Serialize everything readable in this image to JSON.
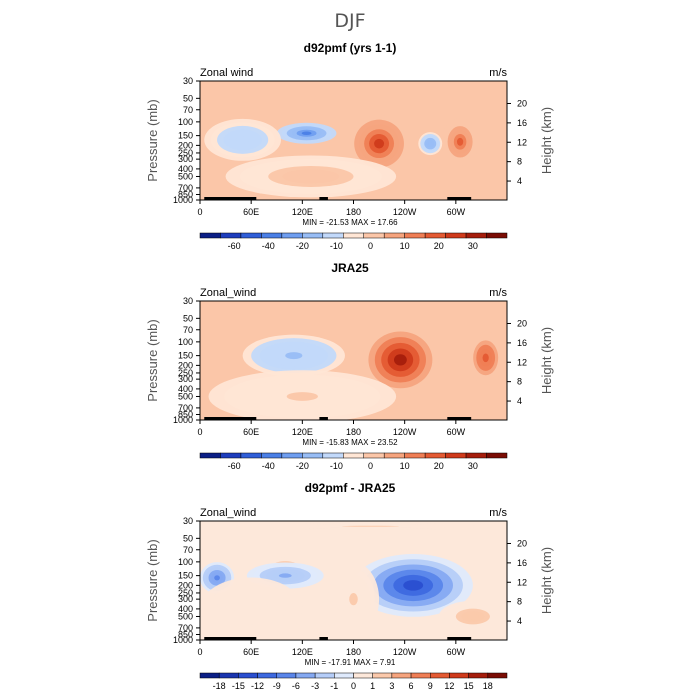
{
  "title": "DJF",
  "chart_data": [
    {
      "type": "contour",
      "panel_title": "d92pmf (yrs 1-1)",
      "variable_label": "Zonal wind",
      "units_label": "m/s",
      "xlabel": "",
      "ylabel_left": "Pressure (mb)",
      "ylabel_right": "Height (km)",
      "x_ticks": [
        "0",
        "60E",
        "120E",
        "180",
        "120W",
        "60W"
      ],
      "x_tick_values": [
        0,
        60,
        120,
        180,
        240,
        300
      ],
      "xlim": [
        0,
        360
      ],
      "pressure_ticks": [
        "30",
        "50",
        "70",
        "100",
        "150",
        "200",
        "250",
        "300",
        "400",
        "500",
        "700",
        "850",
        "1000"
      ],
      "pressure_values": [
        30,
        50,
        70,
        100,
        150,
        200,
        250,
        300,
        400,
        500,
        700,
        850,
        1000
      ],
      "height_ticks": [
        "4",
        "8",
        "12",
        "16",
        "20"
      ],
      "height_values_km": [
        4,
        8,
        12,
        16,
        20
      ],
      "min_max_text": "MIN = -21.53   MAX =  17.66",
      "min": -21.53,
      "max": 17.66,
      "colorbar_labels": [
        "-60",
        "-40",
        "-20",
        "-10",
        "0",
        "10",
        "20",
        "30"
      ],
      "colorbar_colors": [
        "#0b1f86",
        "#1d3dbd",
        "#2f5ed8",
        "#4a7fe6",
        "#6f9ef0",
        "#98bdf5",
        "#c2d9fa",
        "#ffe6d5",
        "#fbc6a8",
        "#f6a47e",
        "#ef7e55",
        "#e45a33",
        "#cf3a1b",
        "#a51d0c",
        "#7a0c04"
      ],
      "blobs": [
        {
          "lon": 125,
          "p": 140,
          "rx": 35,
          "ry": 20,
          "v": -12
        },
        {
          "lon": 210,
          "p": 190,
          "rx": 35,
          "ry": 55,
          "v": 16
        },
        {
          "lon": 305,
          "p": 180,
          "rx": 22,
          "ry": 45,
          "v": 12
        },
        {
          "lon": 270,
          "p": 190,
          "rx": 14,
          "ry": 22,
          "v": -8
        },
        {
          "lon": 50,
          "p": 170,
          "rx": 45,
          "ry": 40,
          "v": -4
        },
        {
          "lon": 130,
          "p": 500,
          "rx": 100,
          "ry": 40,
          "v": 3
        }
      ]
    },
    {
      "type": "contour",
      "panel_title": "JRA25",
      "variable_label": "Zonal_wind",
      "units_label": "m/s",
      "xlabel": "",
      "ylabel_left": "Pressure (mb)",
      "ylabel_right": "Height (km)",
      "x_ticks": [
        "0",
        "60E",
        "120E",
        "180",
        "120W",
        "60W"
      ],
      "x_tick_values": [
        0,
        60,
        120,
        180,
        240,
        300
      ],
      "xlim": [
        0,
        360
      ],
      "pressure_ticks": [
        "30",
        "50",
        "70",
        "100",
        "150",
        "200",
        "250",
        "300",
        "400",
        "500",
        "700",
        "850",
        "1000"
      ],
      "pressure_values": [
        30,
        50,
        70,
        100,
        150,
        200,
        250,
        300,
        400,
        500,
        700,
        850,
        1000
      ],
      "height_ticks": [
        "4",
        "8",
        "12",
        "16",
        "20"
      ],
      "height_values_km": [
        4,
        8,
        12,
        16,
        20
      ],
      "min_max_text": "MIN = -15.83   MAX =  23.52",
      "min": -15.83,
      "max": 23.52,
      "colorbar_labels": [
        "-60",
        "-40",
        "-20",
        "-10",
        "0",
        "10",
        "20",
        "30"
      ],
      "colorbar_colors": [
        "#0b1f86",
        "#1d3dbd",
        "#2f5ed8",
        "#4a7fe6",
        "#6f9ef0",
        "#98bdf5",
        "#c2d9fa",
        "#ffe6d5",
        "#fbc6a8",
        "#f6a47e",
        "#ef7e55",
        "#e45a33",
        "#cf3a1b",
        "#a51d0c",
        "#7a0c04"
      ],
      "blobs": [
        {
          "lon": 110,
          "p": 150,
          "rx": 60,
          "ry": 40,
          "v": -6
        },
        {
          "lon": 235,
          "p": 170,
          "rx": 45,
          "ry": 65,
          "v": 20
        },
        {
          "lon": 335,
          "p": 160,
          "rx": 22,
          "ry": 50,
          "v": 14
        },
        {
          "lon": 120,
          "p": 500,
          "rx": 110,
          "ry": 50,
          "v": 2
        }
      ]
    },
    {
      "type": "contour",
      "panel_title": "d92pmf - JRA25",
      "variable_label": "Zonal_wind",
      "units_label": "m/s",
      "xlabel": "",
      "ylabel_left": "Pressure (mb)",
      "ylabel_right": "Height (km)",
      "x_ticks": [
        "0",
        "60E",
        "120E",
        "180",
        "120W",
        "60W"
      ],
      "x_tick_values": [
        0,
        60,
        120,
        180,
        240,
        300
      ],
      "xlim": [
        0,
        360
      ],
      "pressure_ticks": [
        "30",
        "50",
        "70",
        "100",
        "150",
        "200",
        "250",
        "300",
        "400",
        "500",
        "700",
        "850",
        "1000"
      ],
      "pressure_values": [
        30,
        50,
        70,
        100,
        150,
        200,
        250,
        300,
        400,
        500,
        700,
        850,
        1000
      ],
      "height_ticks": [
        "4",
        "8",
        "12",
        "16",
        "20"
      ],
      "height_values_km": [
        4,
        8,
        12,
        16,
        20
      ],
      "min_max_text": "MIN = -17.91   MAX =   7.91",
      "min": -17.91,
      "max": 7.91,
      "colorbar_labels": [
        "-18",
        "-15",
        "-12",
        "-9",
        "-6",
        "-3",
        "-1",
        "0",
        "1",
        "3",
        "6",
        "9",
        "12",
        "15",
        "18"
      ],
      "colorbar_colors": [
        "#0b1f86",
        "#1a35b0",
        "#2a4fd0",
        "#3d69e0",
        "#5a86ea",
        "#85a9f2",
        "#b5cdf8",
        "#dfeafc",
        "#fde8da",
        "#fbc9ab",
        "#f6a47e",
        "#ef7e55",
        "#e45a33",
        "#cf3a1b",
        "#a51d0c",
        "#7a0c04"
      ],
      "blobs": [
        {
          "lon": 250,
          "p": 200,
          "rx": 70,
          "ry": 60,
          "v": -15
        },
        {
          "lon": 100,
          "p": 120,
          "rx": 25,
          "ry": 20,
          "v": 6
        },
        {
          "lon": 180,
          "p": 300,
          "rx": 30,
          "ry": 70,
          "v": 3
        },
        {
          "lon": 20,
          "p": 160,
          "rx": 20,
          "ry": 30,
          "v": -8
        },
        {
          "lon": 100,
          "p": 150,
          "rx": 45,
          "ry": 25,
          "v": -6
        },
        {
          "lon": 320,
          "p": 500,
          "rx": 40,
          "ry": 30,
          "v": 4
        },
        {
          "lon": 60,
          "p": 400,
          "rx": 60,
          "ry": 60,
          "v": 2
        },
        {
          "lon": 200,
          "p": 35,
          "rx": 200,
          "ry": 6,
          "v": 3
        }
      ]
    }
  ]
}
